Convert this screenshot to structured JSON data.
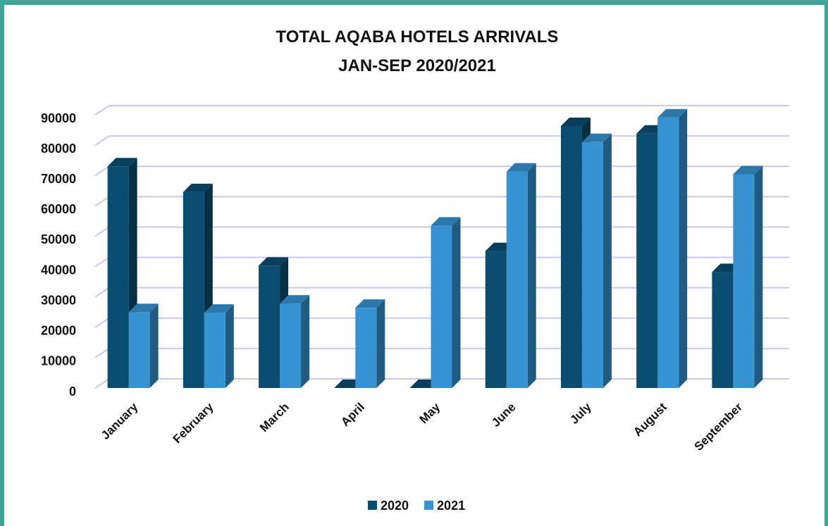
{
  "chart_data": {
    "type": "bar3d",
    "title": "TOTAL AQABA HOTELS ARRIVALS",
    "subtitle": "JAN-SEP 2020/2021",
    "categories": [
      "January",
      "February",
      "March",
      "April",
      "May",
      "June",
      "July",
      "August",
      "September"
    ],
    "series": [
      {
        "name": "2020",
        "color": "#0b4d70",
        "values": [
          73000,
          64500,
          40300,
          0,
          0,
          45100,
          86300,
          83800,
          38200
        ]
      },
      {
        "name": "2021",
        "color": "#3792d1",
        "values": [
          25000,
          24800,
          27800,
          26400,
          53500,
          71300,
          81000,
          89100,
          70400
        ]
      }
    ],
    "ylim": [
      0,
      90000
    ],
    "yticks": [
      0,
      10000,
      20000,
      30000,
      40000,
      50000,
      60000,
      70000,
      80000,
      90000
    ],
    "grid": true,
    "legend": "bottom"
  }
}
